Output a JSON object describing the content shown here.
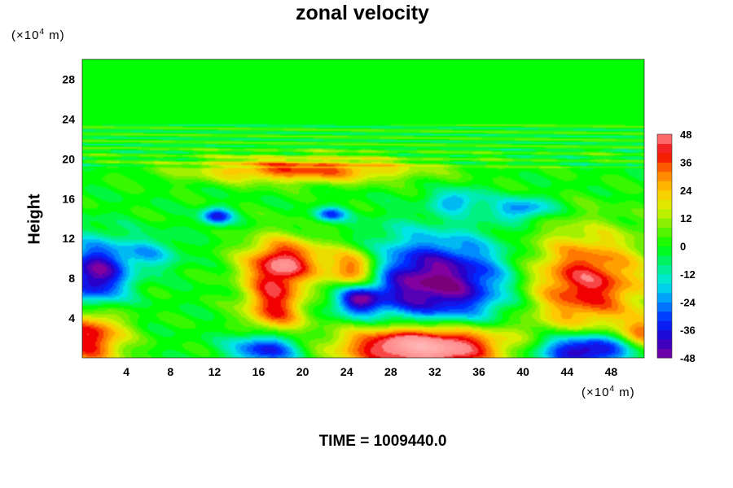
{
  "chart_data": {
    "type": "heatmap",
    "title": "zonal velocity",
    "ylabel": "Height",
    "xlabel": "",
    "x_unit": {
      "prefix": "(×10",
      "exp": "4",
      "suffix": " m)"
    },
    "y_unit": {
      "prefix": "(×10",
      "exp": "4",
      "suffix": " m)"
    },
    "xlim": [
      0,
      51
    ],
    "ylim": [
      0,
      30
    ],
    "x_ticks": [
      4,
      8,
      12,
      16,
      20,
      24,
      28,
      32,
      36,
      40,
      44,
      48
    ],
    "y_ticks": [
      4,
      8,
      12,
      16,
      20,
      24,
      28
    ],
    "colorbar": {
      "min": -48,
      "max": 48,
      "ticks": [
        48,
        36,
        24,
        12,
        0,
        -12,
        -24,
        -36,
        -48
      ]
    },
    "features": [
      {
        "name": "easterly-core-surface",
        "x": 31,
        "y": 1.2,
        "sx": 5.2,
        "sy": 1.6,
        "value": 70
      },
      {
        "name": "jet-20km",
        "x": 20,
        "y": 18.9,
        "sx": 7,
        "sy": 0.9,
        "value": 36
      },
      {
        "name": "positive-44-8",
        "x": 45.5,
        "y": 7.5,
        "sx": 4,
        "sy": 3.6,
        "value": 44
      },
      {
        "name": "positive-17-5",
        "x": 17.5,
        "y": 5.5,
        "sx": 2,
        "sy": 3.5,
        "value": 40
      },
      {
        "name": "positive-19-10",
        "x": 19,
        "y": 9.8,
        "sx": 3,
        "sy": 1.6,
        "value": 32
      },
      {
        "name": "positive-25-9",
        "x": 24.8,
        "y": 8.6,
        "sx": 1.7,
        "sy": 1.6,
        "value": 44
      },
      {
        "name": "positive-1-2",
        "x": 0.7,
        "y": 2.2,
        "sx": 2.2,
        "sy": 2.3,
        "value": 44
      },
      {
        "name": "positive-51-2",
        "x": 51,
        "y": 2.5,
        "sx": 1.3,
        "sy": 1.2,
        "value": 30
      },
      {
        "name": "negative-32-8",
        "x": 32,
        "y": 7.5,
        "sx": 5,
        "sy": 3.2,
        "value": -52
      },
      {
        "name": "negative-25-6",
        "x": 25,
        "y": 6.0,
        "sx": 1.4,
        "sy": 1.1,
        "value": -40
      },
      {
        "name": "negative-1-8",
        "x": 1.2,
        "y": 8.2,
        "sx": 2,
        "sy": 2.4,
        "value": -48
      },
      {
        "name": "negative-17-1",
        "x": 17,
        "y": 1.0,
        "sx": 2.2,
        "sy": 1.3,
        "value": -52
      },
      {
        "name": "negative-45-1",
        "x": 45.5,
        "y": 0.8,
        "sx": 3.2,
        "sy": 1.2,
        "value": -52
      },
      {
        "name": "negative-12-14",
        "x": 12.2,
        "y": 14.2,
        "sx": 1,
        "sy": 0.6,
        "value": -36
      },
      {
        "name": "negative-22-14",
        "x": 22.5,
        "y": 14.4,
        "sx": 1,
        "sy": 0.5,
        "value": -30
      },
      {
        "name": "negative-40-15",
        "x": 40,
        "y": 15,
        "sx": 2,
        "sy": 0.8,
        "value": -26
      },
      {
        "name": "negative-34-15",
        "x": 34,
        "y": 15.8,
        "sx": 1.5,
        "sy": 0.8,
        "value": -22
      },
      {
        "name": "negative-6-10",
        "x": 6,
        "y": 10.5,
        "sx": 2,
        "sy": 1.2,
        "value": -18
      }
    ]
  },
  "footer": {
    "time_label": "TIME = 1009440.0"
  }
}
